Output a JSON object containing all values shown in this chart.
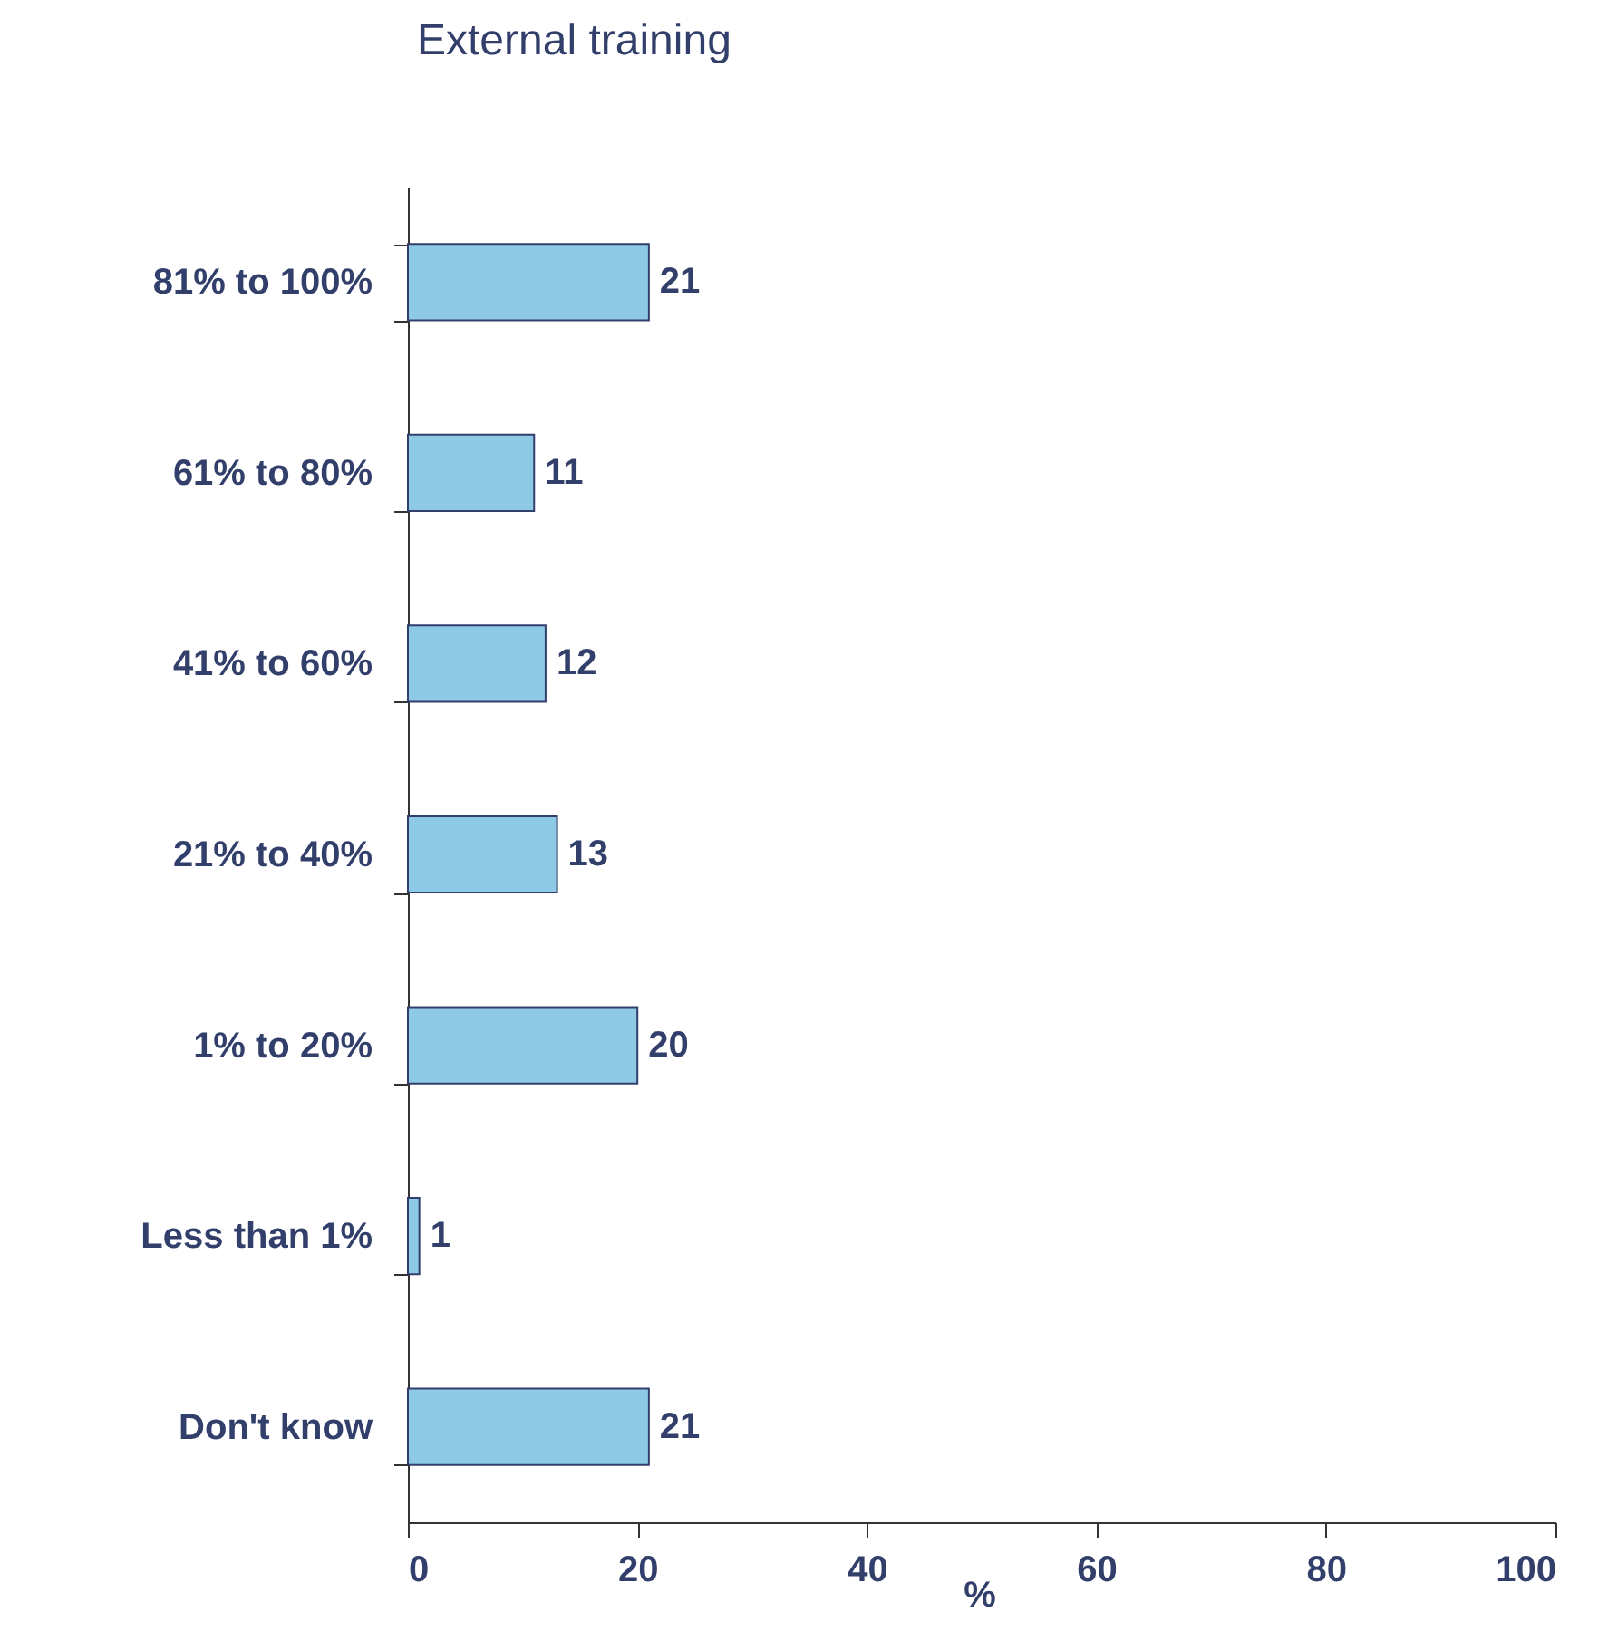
{
  "chart_data": {
    "type": "bar",
    "orientation": "horizontal",
    "title": "External training",
    "xlabel": "%",
    "categories": [
      "81% to 100%",
      "61% to 80%",
      "41% to 60%",
      "21% to 40%",
      "1% to 20%",
      "Less than 1%",
      "Don't know"
    ],
    "values": [
      21,
      11,
      12,
      13,
      20,
      1,
      21
    ],
    "color": "#8ecae6",
    "xlim": [
      0,
      100
    ],
    "xticks": [
      0,
      20,
      40,
      60,
      80,
      100
    ],
    "grid": false,
    "data_labels": true
  }
}
